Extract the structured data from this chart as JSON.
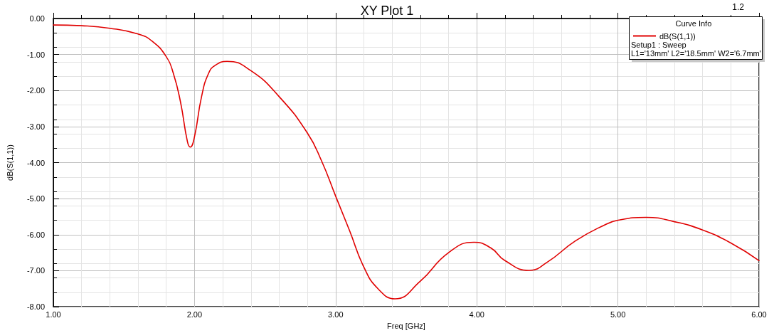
{
  "chart_data": {
    "type": "line",
    "title": "XY Plot 1",
    "xlabel": "Freq [GHz]",
    "ylabel": "dB(S(1,1))",
    "legend_title": "Curve Info",
    "annotations": [
      "Setup1 : Sweep",
      "L1='13mm' L2='18.5mm' W2='6.7mm'",
      "1.2"
    ],
    "x": [
      1.0,
      1.2,
      1.4,
      1.6,
      1.7,
      1.8,
      1.85,
      1.9,
      1.95,
      1.97,
      2.0,
      2.05,
      2.1,
      2.15,
      2.23,
      2.4,
      2.6,
      2.8,
      2.9,
      3.0,
      3.1,
      3.2,
      3.3,
      3.42,
      3.6,
      3.8,
      3.98,
      4.1,
      4.2,
      4.37,
      4.5,
      4.7,
      4.9,
      5.0,
      5.2,
      5.4,
      5.6,
      5.8,
      6.0
    ],
    "series": [
      {
        "name": "dB(S(1,1))",
        "color": "#e00000",
        "values": [
          -0.18,
          -0.2,
          -0.27,
          -0.43,
          -0.63,
          -1.06,
          -1.52,
          -2.3,
          -3.42,
          -3.57,
          -3.28,
          -2.17,
          -1.52,
          -1.29,
          -1.19,
          -1.45,
          -2.17,
          -3.18,
          -3.95,
          -4.93,
          -5.9,
          -6.9,
          -7.5,
          -7.78,
          -7.29,
          -6.5,
          -6.21,
          -6.37,
          -6.72,
          -6.99,
          -6.76,
          -6.17,
          -5.74,
          -5.6,
          -5.52,
          -5.64,
          -5.87,
          -6.23,
          -6.72
        ]
      }
    ],
    "xlim": [
      1,
      6
    ],
    "xticks": [
      {
        "value": 1,
        "label": "1.00"
      },
      {
        "value": 2,
        "label": "2.00"
      },
      {
        "value": 3,
        "label": "3.00"
      },
      {
        "value": 4,
        "label": "4.00"
      },
      {
        "value": 5,
        "label": "5.00"
      },
      {
        "value": 6,
        "label": "6.00"
      }
    ],
    "ylim": [
      -8,
      0
    ],
    "yticks": [
      {
        "value": -8,
        "label": "-8.00"
      },
      {
        "value": -7,
        "label": "-7.00"
      },
      {
        "value": -6,
        "label": "-6.00"
      },
      {
        "value": -5,
        "label": "-5.00"
      },
      {
        "value": -4,
        "label": "-4.00"
      },
      {
        "value": -3,
        "label": "-3.00"
      },
      {
        "value": -2,
        "label": "-2.00"
      },
      {
        "value": -1,
        "label": "-1.00"
      },
      {
        "value": 0,
        "label": "0.00"
      }
    ],
    "grid": true,
    "legend": "top right",
    "marker": "none",
    "line_style": "solid"
  }
}
